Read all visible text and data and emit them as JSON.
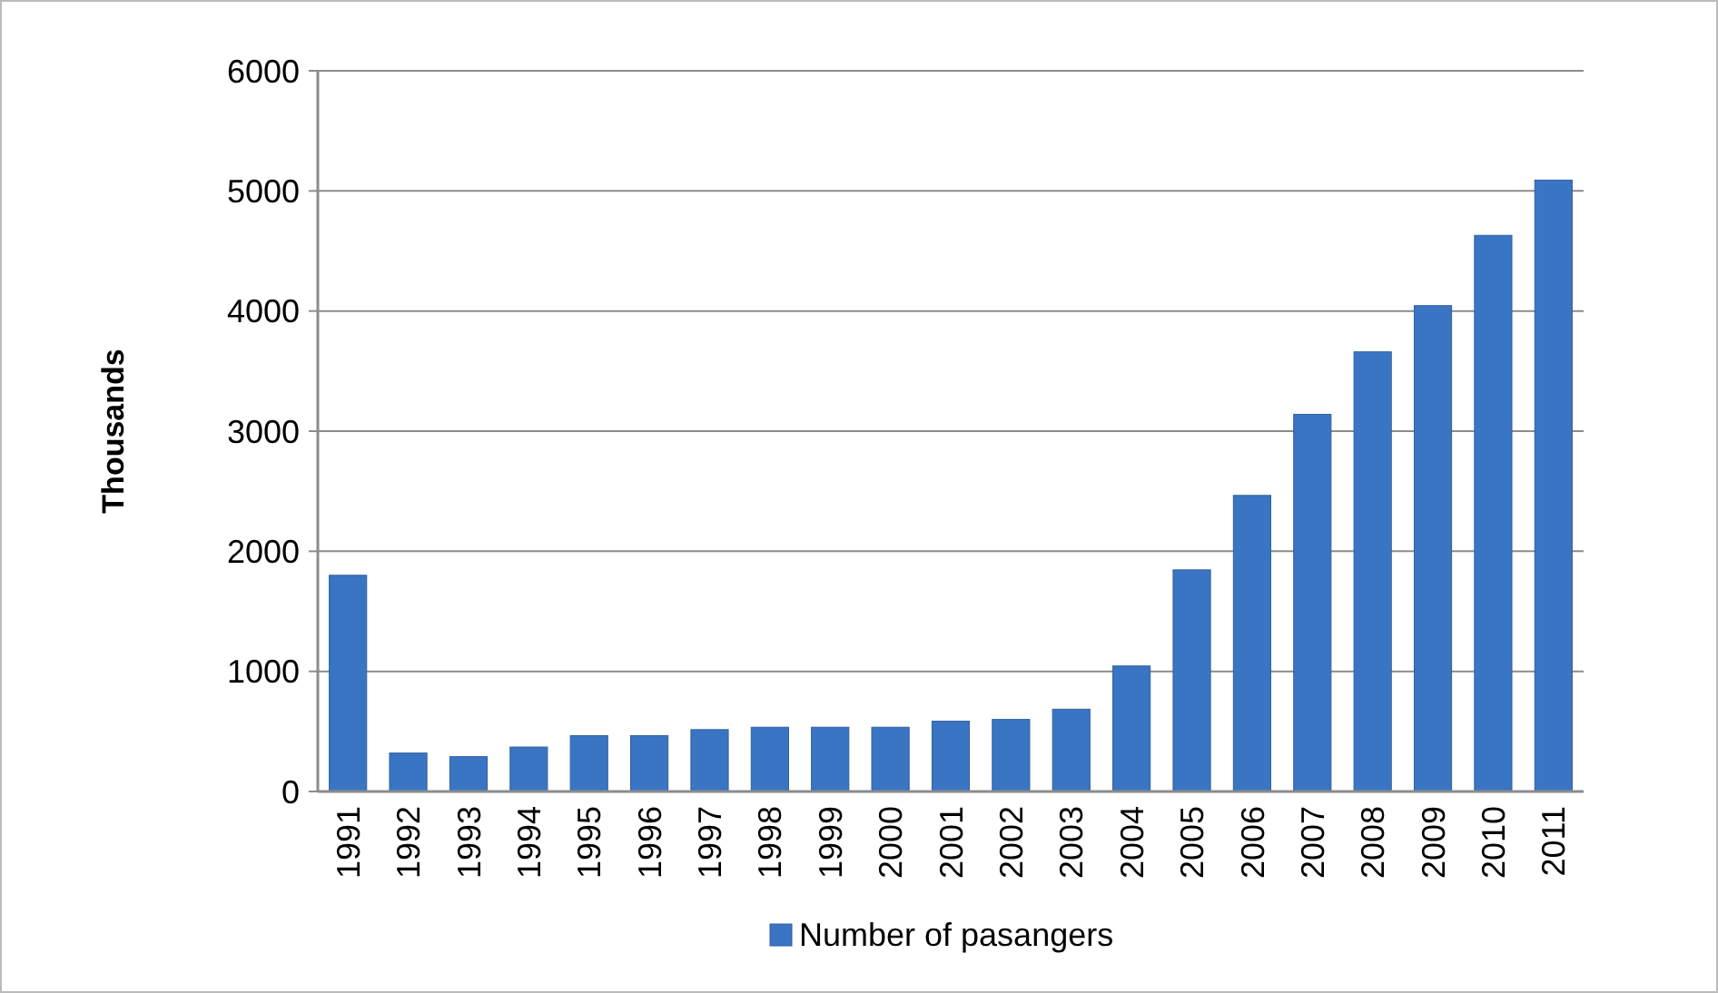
{
  "chart_data": {
    "type": "bar",
    "ylabel": "Thousands",
    "categories": [
      "1991",
      "1992",
      "1993",
      "1994",
      "1995",
      "1996",
      "1997",
      "1998",
      "1999",
      "2000",
      "2001",
      "2002",
      "2003",
      "2004",
      "2005",
      "2006",
      "2007",
      "2008",
      "2009",
      "2010",
      "2011"
    ],
    "series": [
      {
        "name": "Number of pasangers",
        "color": "#3a75c4",
        "values": [
          1800,
          320,
          290,
          370,
          465,
          465,
          515,
          535,
          535,
          535,
          585,
          600,
          685,
          1045,
          1845,
          2465,
          3140,
          3660,
          4045,
          4630,
          5090
        ]
      }
    ],
    "ylim": [
      0,
      6000
    ],
    "yticks": [
      0,
      1000,
      2000,
      3000,
      4000,
      5000,
      6000
    ],
    "grid": "y",
    "legend": "bottom"
  }
}
